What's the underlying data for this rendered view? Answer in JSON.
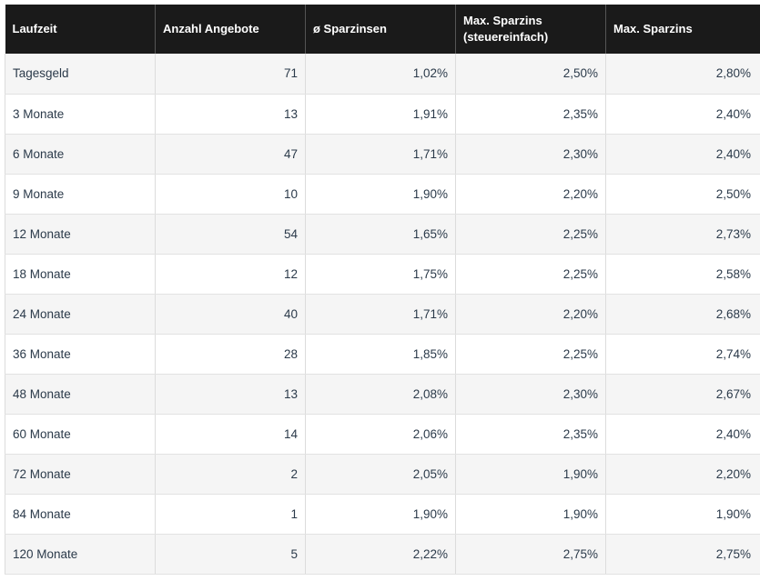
{
  "table": {
    "headers": [
      "Laufzeit",
      "Anzahl Angebote",
      "ø Sparzinsen",
      "Max. Sparzins\n(steuereinfach)",
      "Max. Sparzins"
    ],
    "rows": [
      [
        "Tagesgeld",
        "71",
        "1,02%",
        "2,50%",
        "2,80%"
      ],
      [
        "3 Monate",
        "13",
        "1,91%",
        "2,35%",
        "2,40%"
      ],
      [
        "6 Monate",
        "47",
        "1,71%",
        "2,30%",
        "2,40%"
      ],
      [
        "9 Monate",
        "10",
        "1,90%",
        "2,20%",
        "2,50%"
      ],
      [
        "12 Monate",
        "54",
        "1,65%",
        "2,25%",
        "2,73%"
      ],
      [
        "18 Monate",
        "12",
        "1,75%",
        "2,25%",
        "2,58%"
      ],
      [
        "24 Monate",
        "40",
        "1,71%",
        "2,20%",
        "2,68%"
      ],
      [
        "36 Monate",
        "28",
        "1,85%",
        "2,25%",
        "2,74%"
      ],
      [
        "48 Monate",
        "13",
        "2,08%",
        "2,30%",
        "2,67%"
      ],
      [
        "60 Monate",
        "14",
        "2,06%",
        "2,35%",
        "2,40%"
      ],
      [
        "72 Monate",
        "2",
        "2,05%",
        "1,90%",
        "2,20%"
      ],
      [
        "84 Monate",
        "1",
        "1,90%",
        "1,90%",
        "1,90%"
      ],
      [
        "120 Monate",
        "5",
        "2,22%",
        "2,75%",
        "2,75%"
      ]
    ]
  }
}
